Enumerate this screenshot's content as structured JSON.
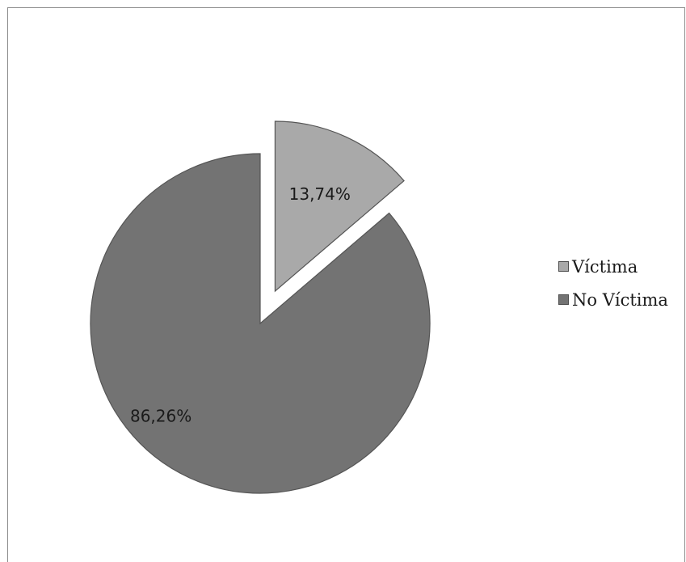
{
  "chart_data": {
    "type": "pie",
    "title": "",
    "legend_position": "right",
    "slices": [
      {
        "label": "Víctima",
        "value": 13.74,
        "value_label": "13,74%",
        "color": "#a9a9a9",
        "exploded": true
      },
      {
        "label": "No Víctima",
        "value": 86.26,
        "value_label": "86,26%",
        "color": "#737373",
        "exploded": false
      }
    ]
  },
  "legend": {
    "items": [
      {
        "label": "Víctima",
        "color": "#a9a9a9"
      },
      {
        "label": "No Víctima",
        "color": "#737373"
      }
    ]
  }
}
